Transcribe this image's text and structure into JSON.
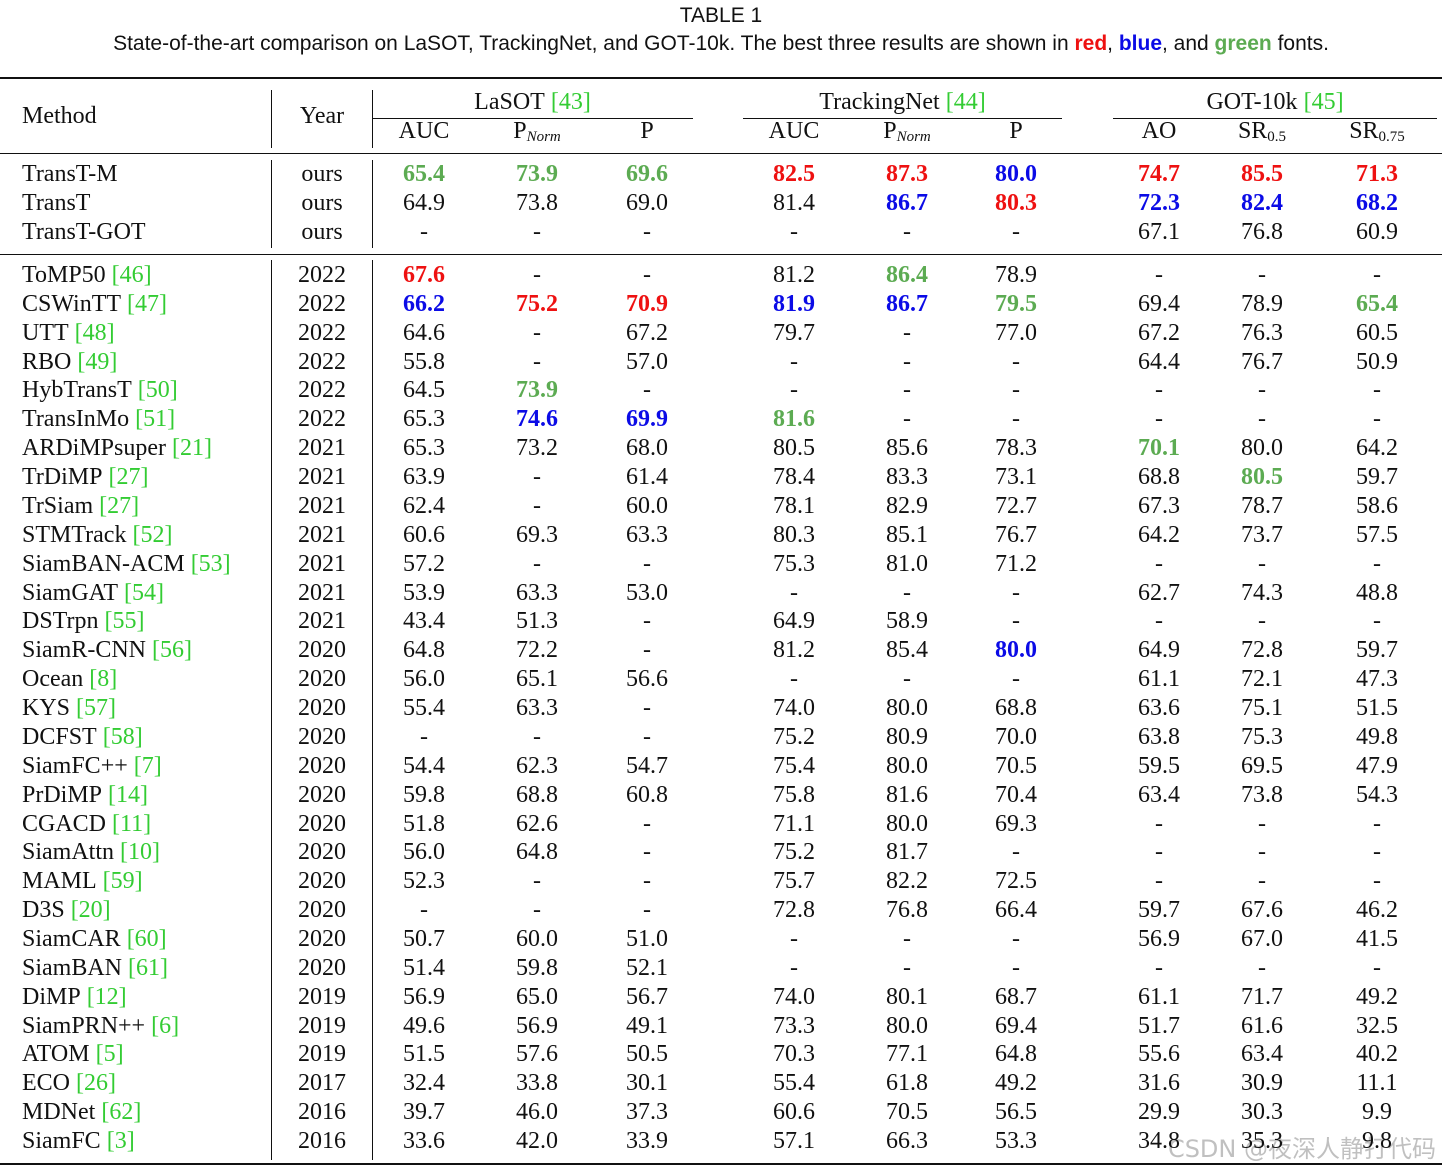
{
  "caption": {
    "label": "TABLE 1",
    "segments": [
      {
        "text": "State-of-the-art comparison on LaSOT, TrackingNet, and GOT-10k. The best three results are shown in "
      },
      {
        "text": "red",
        "color": "red"
      },
      {
        "text": ", "
      },
      {
        "text": "blue",
        "color": "blue"
      },
      {
        "text": ", and "
      },
      {
        "text": "green",
        "color": "green"
      },
      {
        "text": " fonts."
      }
    ]
  },
  "palette": {
    "red": "#ee1111",
    "blue": "#0b0be6",
    "green": "#5cab52",
    "citation": "#33cc33"
  },
  "header": {
    "method": "Method",
    "year": "Year",
    "groups": [
      {
        "name": "LaSOT",
        "ref": "[43]",
        "columns": [
          {
            "main": "AUC"
          },
          {
            "main": "P",
            "sub": "Norm",
            "italic": true
          },
          {
            "main": "P"
          }
        ]
      },
      {
        "name": "TrackingNet",
        "ref": "[44]",
        "columns": [
          {
            "main": "AUC"
          },
          {
            "main": "P",
            "sub": "Norm",
            "italic": true
          },
          {
            "main": "P"
          }
        ]
      },
      {
        "name": "GOT-10k",
        "ref": "[45]",
        "columns": [
          {
            "main": "AO"
          },
          {
            "main": "SR",
            "sub": "0.5"
          },
          {
            "main": "SR",
            "sub": "0.75"
          }
        ]
      }
    ]
  },
  "sections": [
    [
      {
        "method": "TransT-M",
        "year": "ours",
        "cells": [
          {
            "text": "65.4",
            "color": "green"
          },
          {
            "text": "73.9",
            "color": "green"
          },
          {
            "text": "69.6",
            "color": "green"
          },
          {
            "text": "82.5",
            "color": "red"
          },
          {
            "text": "87.3",
            "color": "red"
          },
          {
            "text": "80.0",
            "color": "blue"
          },
          {
            "text": "74.7",
            "color": "red"
          },
          {
            "text": "85.5",
            "color": "red"
          },
          {
            "text": "71.3",
            "color": "red"
          }
        ]
      },
      {
        "method": "TransT",
        "year": "ours",
        "cells": [
          "64.9",
          "73.8",
          "69.0",
          "81.4",
          {
            "text": "86.7",
            "color": "blue"
          },
          {
            "text": "80.3",
            "color": "red"
          },
          {
            "text": "72.3",
            "color": "blue"
          },
          {
            "text": "82.4",
            "color": "blue"
          },
          {
            "text": "68.2",
            "color": "blue"
          }
        ]
      },
      {
        "method": "TransT-GOT",
        "year": "ours",
        "cells": [
          "-",
          "-",
          "-",
          "-",
          "-",
          "-",
          "67.1",
          "76.8",
          "60.9"
        ]
      }
    ],
    [
      {
        "method": "ToMP50",
        "ref": "[46]",
        "year": "2022",
        "cells": [
          {
            "text": "67.6",
            "color": "red"
          },
          "-",
          "-",
          "81.2",
          {
            "text": "86.4",
            "color": "green"
          },
          "78.9",
          "-",
          "-",
          "-"
        ]
      },
      {
        "method": "CSWinTT",
        "ref": "[47]",
        "year": "2022",
        "cells": [
          {
            "text": "66.2",
            "color": "blue"
          },
          {
            "text": "75.2",
            "color": "red"
          },
          {
            "text": "70.9",
            "color": "red"
          },
          {
            "text": "81.9",
            "color": "blue"
          },
          {
            "text": "86.7",
            "color": "blue"
          },
          {
            "text": "79.5",
            "color": "green"
          },
          "69.4",
          "78.9",
          {
            "text": "65.4",
            "color": "green"
          }
        ]
      },
      {
        "method": "UTT",
        "ref": "[48]",
        "year": "2022",
        "cells": [
          "64.6",
          "-",
          "67.2",
          "79.7",
          "-",
          "77.0",
          "67.2",
          "76.3",
          "60.5"
        ]
      },
      {
        "method": "RBO",
        "ref": "[49]",
        "year": "2022",
        "cells": [
          "55.8",
          "-",
          "57.0",
          "-",
          "-",
          "-",
          "64.4",
          "76.7",
          "50.9"
        ]
      },
      {
        "method": "HybTransT",
        "ref": "[50]",
        "year": "2022",
        "cells": [
          "64.5",
          {
            "text": "73.9",
            "color": "green"
          },
          "-",
          "-",
          "-",
          "-",
          "-",
          "-",
          "-"
        ]
      },
      {
        "method": "TransInMo",
        "ref": "[51]",
        "year": "2022",
        "cells": [
          "65.3",
          {
            "text": "74.6",
            "color": "blue"
          },
          {
            "text": "69.9",
            "color": "blue"
          },
          {
            "text": "81.6",
            "color": "green"
          },
          "-",
          "-",
          "-",
          "-",
          "-"
        ]
      },
      {
        "method": "ARDiMPsuper",
        "ref": "[21]",
        "year": "2021",
        "cells": [
          "65.3",
          "73.2",
          "68.0",
          "80.5",
          "85.6",
          "78.3",
          {
            "text": "70.1",
            "color": "green"
          },
          "80.0",
          "64.2"
        ]
      },
      {
        "method": "TrDiMP",
        "ref": "[27]",
        "year": "2021",
        "cells": [
          "63.9",
          "-",
          "61.4",
          "78.4",
          "83.3",
          "73.1",
          "68.8",
          {
            "text": "80.5",
            "color": "green"
          },
          "59.7"
        ]
      },
      {
        "method": "TrSiam",
        "ref": "[27]",
        "year": "2021",
        "cells": [
          "62.4",
          "-",
          "60.0",
          "78.1",
          "82.9",
          "72.7",
          "67.3",
          "78.7",
          "58.6"
        ]
      },
      {
        "method": "STMTrack",
        "ref": "[52]",
        "year": "2021",
        "cells": [
          "60.6",
          "69.3",
          "63.3",
          "80.3",
          "85.1",
          "76.7",
          "64.2",
          "73.7",
          "57.5"
        ]
      },
      {
        "method": "SiamBAN-ACM",
        "ref": "[53]",
        "year": "2021",
        "cells": [
          "57.2",
          "-",
          "-",
          "75.3",
          "81.0",
          "71.2",
          "-",
          "-",
          "-"
        ]
      },
      {
        "method": "SiamGAT",
        "ref": "[54]",
        "year": "2021",
        "cells": [
          "53.9",
          "63.3",
          "53.0",
          "-",
          "-",
          "-",
          "62.7",
          "74.3",
          "48.8"
        ]
      },
      {
        "method": "DSTrpn",
        "ref": "[55]",
        "year": "2021",
        "cells": [
          "43.4",
          "51.3",
          "-",
          "64.9",
          "58.9",
          "-",
          "-",
          "-",
          "-"
        ]
      },
      {
        "method": "SiamR-CNN",
        "ref": "[56]",
        "year": "2020",
        "cells": [
          "64.8",
          "72.2",
          "-",
          "81.2",
          "85.4",
          {
            "text": "80.0",
            "color": "blue"
          },
          "64.9",
          "72.8",
          "59.7"
        ]
      },
      {
        "method": "Ocean",
        "ref": "[8]",
        "year": "2020",
        "cells": [
          "56.0",
          "65.1",
          "56.6",
          "-",
          "-",
          "-",
          "61.1",
          "72.1",
          "47.3"
        ]
      },
      {
        "method": "KYS",
        "ref": "[57]",
        "year": "2020",
        "cells": [
          "55.4",
          "63.3",
          "-",
          "74.0",
          "80.0",
          "68.8",
          "63.6",
          "75.1",
          "51.5"
        ]
      },
      {
        "method": "DCFST",
        "ref": "[58]",
        "year": "2020",
        "cells": [
          "-",
          "-",
          "-",
          "75.2",
          "80.9",
          "70.0",
          "63.8",
          "75.3",
          "49.8"
        ]
      },
      {
        "method": "SiamFC++",
        "ref": "[7]",
        "year": "2020",
        "cells": [
          "54.4",
          "62.3",
          "54.7",
          "75.4",
          "80.0",
          "70.5",
          "59.5",
          "69.5",
          "47.9"
        ]
      },
      {
        "method": "PrDiMP",
        "ref": "[14]",
        "year": "2020",
        "cells": [
          "59.8",
          "68.8",
          "60.8",
          "75.8",
          "81.6",
          "70.4",
          "63.4",
          "73.8",
          "54.3"
        ]
      },
      {
        "method": "CGACD",
        "ref": "[11]",
        "year": "2020",
        "cells": [
          "51.8",
          "62.6",
          "-",
          "71.1",
          "80.0",
          "69.3",
          "-",
          "-",
          "-"
        ]
      },
      {
        "method": "SiamAttn",
        "ref": "[10]",
        "year": "2020",
        "cells": [
          "56.0",
          "64.8",
          "-",
          "75.2",
          "81.7",
          "-",
          "-",
          "-",
          "-"
        ]
      },
      {
        "method": "MAML",
        "ref": "[59]",
        "year": "2020",
        "cells": [
          "52.3",
          "-",
          "-",
          "75.7",
          "82.2",
          "72.5",
          "-",
          "-",
          "-"
        ]
      },
      {
        "method": "D3S",
        "ref": "[20]",
        "year": "2020",
        "cells": [
          "-",
          "-",
          "-",
          "72.8",
          "76.8",
          "66.4",
          "59.7",
          "67.6",
          "46.2"
        ]
      },
      {
        "method": "SiamCAR",
        "ref": "[60]",
        "year": "2020",
        "cells": [
          "50.7",
          "60.0",
          "51.0",
          "-",
          "-",
          "-",
          "56.9",
          "67.0",
          "41.5"
        ]
      },
      {
        "method": "SiamBAN",
        "ref": "[61]",
        "year": "2020",
        "cells": [
          "51.4",
          "59.8",
          "52.1",
          "-",
          "-",
          "-",
          "-",
          "-",
          "-"
        ]
      },
      {
        "method": "DiMP",
        "ref": "[12]",
        "year": "2019",
        "cells": [
          "56.9",
          "65.0",
          "56.7",
          "74.0",
          "80.1",
          "68.7",
          "61.1",
          "71.7",
          "49.2"
        ]
      },
      {
        "method": "SiamPRN++",
        "ref": "[6]",
        "year": "2019",
        "cells": [
          "49.6",
          "56.9",
          "49.1",
          "73.3",
          "80.0",
          "69.4",
          "51.7",
          "61.6",
          "32.5"
        ]
      },
      {
        "method": "ATOM",
        "ref": "[5]",
        "year": "2019",
        "cells": [
          "51.5",
          "57.6",
          "50.5",
          "70.3",
          "77.1",
          "64.8",
          "55.6",
          "63.4",
          "40.2"
        ]
      },
      {
        "method": "ECO",
        "ref": "[26]",
        "year": "2017",
        "cells": [
          "32.4",
          "33.8",
          "30.1",
          "55.4",
          "61.8",
          "49.2",
          "31.6",
          "30.9",
          "11.1"
        ]
      },
      {
        "method": "MDNet",
        "ref": "[62]",
        "year": "2016",
        "cells": [
          "39.7",
          "46.0",
          "37.3",
          "60.6",
          "70.5",
          "56.5",
          "29.9",
          "30.3",
          "9.9"
        ]
      },
      {
        "method": "SiamFC",
        "ref": "[3]",
        "year": "2016",
        "cells": [
          "33.6",
          "42.0",
          "33.9",
          "57.1",
          "66.3",
          "53.3",
          "34.8",
          "35.3",
          "9.8"
        ]
      }
    ]
  ],
  "watermark": "CSDN @夜深人静打代码"
}
